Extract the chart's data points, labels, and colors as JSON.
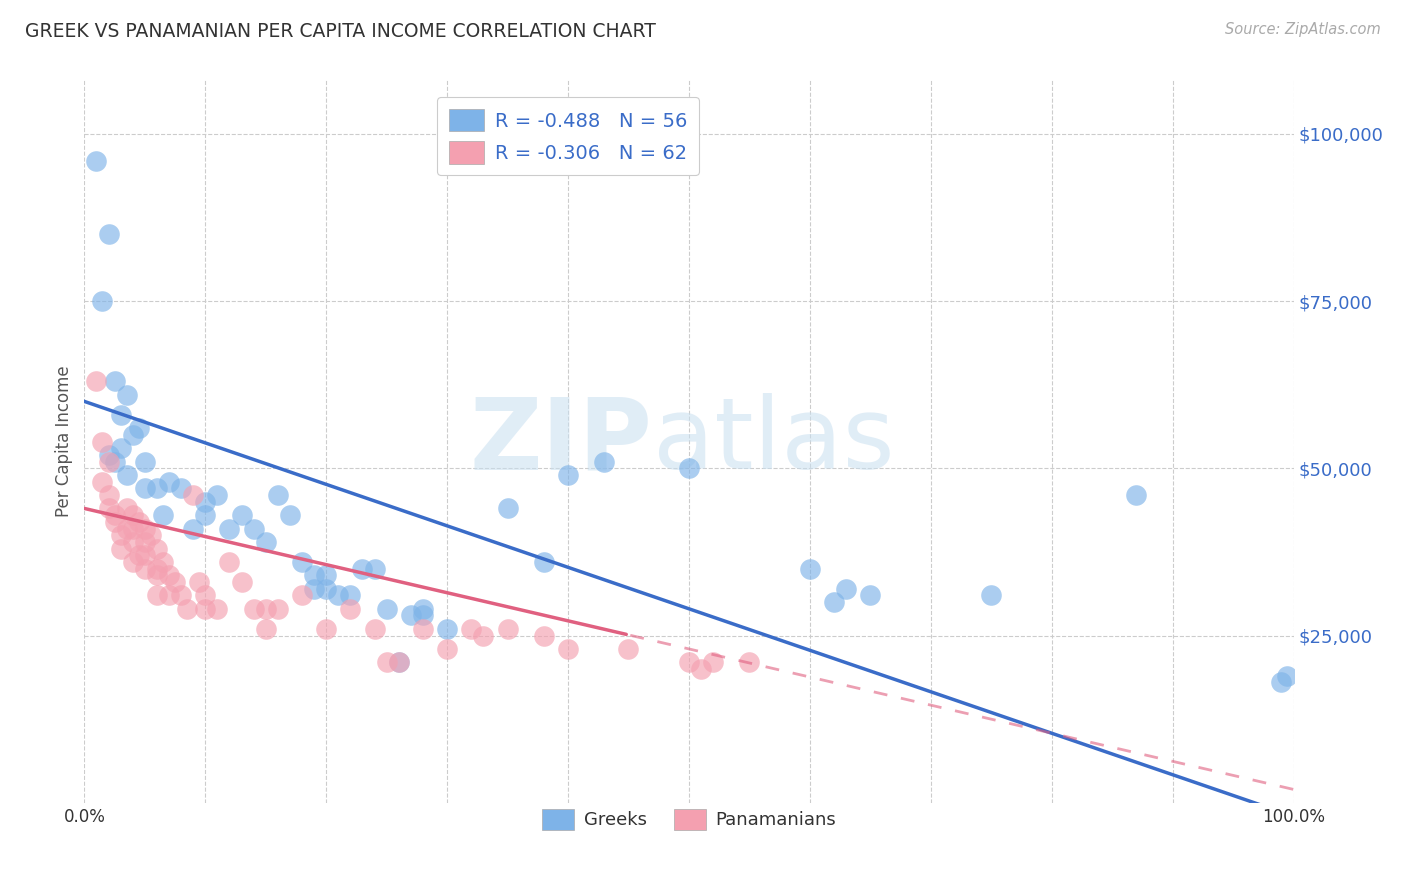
{
  "title": "GREEK VS PANAMANIAN PER CAPITA INCOME CORRELATION CHART",
  "source": "Source: ZipAtlas.com",
  "ylabel": "Per Capita Income",
  "ytick_labels": [
    "$25,000",
    "$50,000",
    "$75,000",
    "$100,000"
  ],
  "ytick_values": [
    25000,
    50000,
    75000,
    100000
  ],
  "ylim": [
    0,
    108000
  ],
  "xlim": [
    0,
    1.0
  ],
  "legend_blue_label": "R = -0.488   N = 56",
  "legend_pink_label": "R = -0.306   N = 62",
  "legend_bottom_greek": "Greeks",
  "legend_bottom_pana": "Panamanians",
  "blue_color": "#7EB3E8",
  "pink_color": "#F4A0B0",
  "blue_line_color": "#3A6CC8",
  "pink_line_color": "#E06080",
  "watermark_zip": "ZIP",
  "watermark_atlas": "atlas",
  "blue_intercept": 60000,
  "blue_slope": -62000,
  "pink_intercept": 44000,
  "pink_slope": -42000,
  "blue_scatter": [
    [
      0.01,
      96000
    ],
    [
      0.02,
      85000
    ],
    [
      0.015,
      75000
    ],
    [
      0.025,
      63000
    ],
    [
      0.03,
      58000
    ],
    [
      0.035,
      61000
    ],
    [
      0.04,
      55000
    ],
    [
      0.02,
      52000
    ],
    [
      0.045,
      56000
    ],
    [
      0.03,
      53000
    ],
    [
      0.025,
      51000
    ],
    [
      0.035,
      49000
    ],
    [
      0.05,
      51000
    ],
    [
      0.05,
      47000
    ],
    [
      0.06,
      47000
    ],
    [
      0.07,
      48000
    ],
    [
      0.08,
      47000
    ],
    [
      0.065,
      43000
    ],
    [
      0.09,
      41000
    ],
    [
      0.1,
      45000
    ],
    [
      0.11,
      46000
    ],
    [
      0.1,
      43000
    ],
    [
      0.12,
      41000
    ],
    [
      0.13,
      43000
    ],
    [
      0.14,
      41000
    ],
    [
      0.15,
      39000
    ],
    [
      0.16,
      46000
    ],
    [
      0.17,
      43000
    ],
    [
      0.18,
      36000
    ],
    [
      0.19,
      34000
    ],
    [
      0.19,
      32000
    ],
    [
      0.2,
      34000
    ],
    [
      0.2,
      32000
    ],
    [
      0.21,
      31000
    ],
    [
      0.22,
      31000
    ],
    [
      0.23,
      35000
    ],
    [
      0.24,
      35000
    ],
    [
      0.25,
      29000
    ],
    [
      0.26,
      21000
    ],
    [
      0.27,
      28000
    ],
    [
      0.28,
      29000
    ],
    [
      0.28,
      28000
    ],
    [
      0.3,
      26000
    ],
    [
      0.35,
      44000
    ],
    [
      0.38,
      36000
    ],
    [
      0.4,
      49000
    ],
    [
      0.43,
      51000
    ],
    [
      0.5,
      50000
    ],
    [
      0.6,
      35000
    ],
    [
      0.62,
      30000
    ],
    [
      0.63,
      32000
    ],
    [
      0.65,
      31000
    ],
    [
      0.75,
      31000
    ],
    [
      0.87,
      46000
    ],
    [
      0.99,
      18000
    ],
    [
      0.995,
      19000
    ]
  ],
  "pink_scatter": [
    [
      0.01,
      63000
    ],
    [
      0.015,
      54000
    ],
    [
      0.02,
      51000
    ],
    [
      0.015,
      48000
    ],
    [
      0.02,
      46000
    ],
    [
      0.02,
      44000
    ],
    [
      0.025,
      42000
    ],
    [
      0.025,
      43000
    ],
    [
      0.03,
      40000
    ],
    [
      0.03,
      38000
    ],
    [
      0.035,
      44000
    ],
    [
      0.035,
      41000
    ],
    [
      0.04,
      43000
    ],
    [
      0.04,
      41000
    ],
    [
      0.04,
      39000
    ],
    [
      0.045,
      37000
    ],
    [
      0.04,
      36000
    ],
    [
      0.045,
      42000
    ],
    [
      0.05,
      41000
    ],
    [
      0.05,
      39000
    ],
    [
      0.05,
      37000
    ],
    [
      0.05,
      35000
    ],
    [
      0.055,
      40000
    ],
    [
      0.06,
      38000
    ],
    [
      0.06,
      35000
    ],
    [
      0.06,
      34000
    ],
    [
      0.06,
      31000
    ],
    [
      0.065,
      36000
    ],
    [
      0.07,
      34000
    ],
    [
      0.07,
      31000
    ],
    [
      0.075,
      33000
    ],
    [
      0.08,
      31000
    ],
    [
      0.085,
      29000
    ],
    [
      0.09,
      46000
    ],
    [
      0.095,
      33000
    ],
    [
      0.1,
      29000
    ],
    [
      0.1,
      31000
    ],
    [
      0.11,
      29000
    ],
    [
      0.12,
      36000
    ],
    [
      0.13,
      33000
    ],
    [
      0.14,
      29000
    ],
    [
      0.15,
      26000
    ],
    [
      0.16,
      29000
    ],
    [
      0.15,
      29000
    ],
    [
      0.18,
      31000
    ],
    [
      0.2,
      26000
    ],
    [
      0.22,
      29000
    ],
    [
      0.24,
      26000
    ],
    [
      0.25,
      21000
    ],
    [
      0.26,
      21000
    ],
    [
      0.28,
      26000
    ],
    [
      0.3,
      23000
    ],
    [
      0.32,
      26000
    ],
    [
      0.33,
      25000
    ],
    [
      0.35,
      26000
    ],
    [
      0.38,
      25000
    ],
    [
      0.4,
      23000
    ],
    [
      0.45,
      23000
    ],
    [
      0.5,
      21000
    ],
    [
      0.51,
      20000
    ],
    [
      0.52,
      21000
    ],
    [
      0.55,
      21000
    ]
  ]
}
